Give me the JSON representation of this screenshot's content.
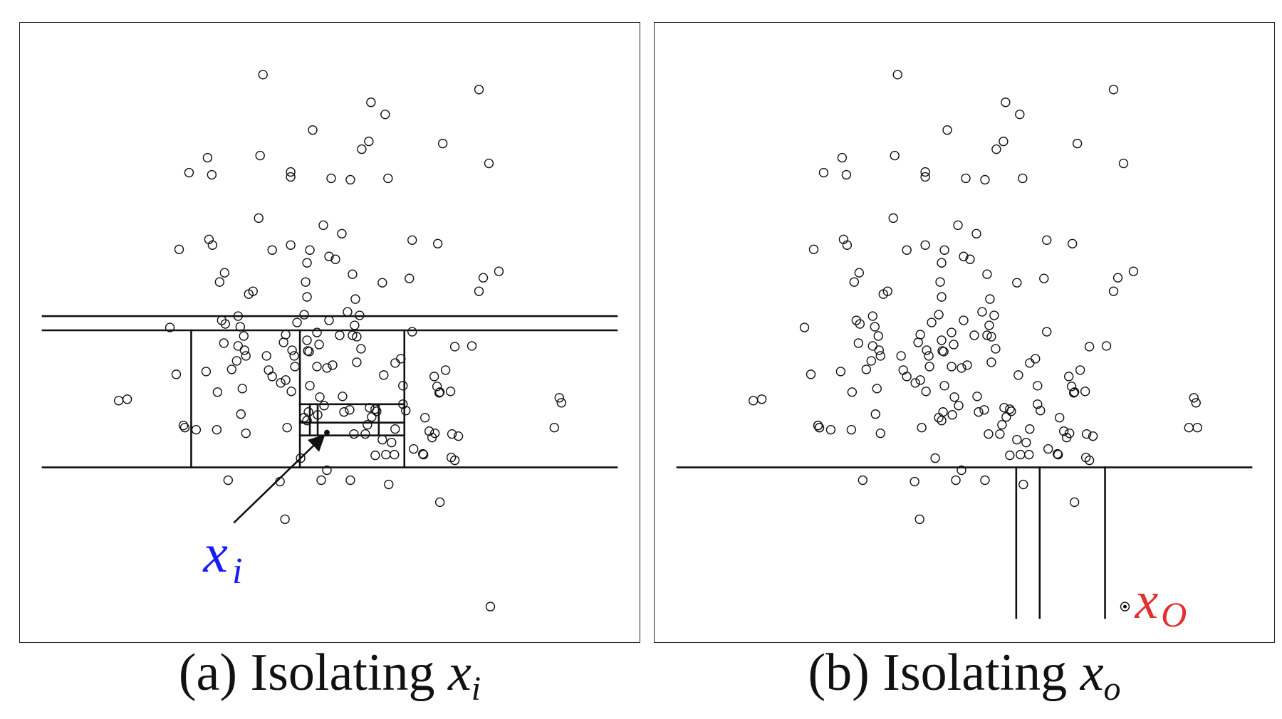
{
  "panels": [
    {
      "id": "a",
      "caption_prefix": "(a) Isolating",
      "caption_var": "x",
      "caption_sub": "i",
      "point_label": "x",
      "point_label_sub": "i",
      "label_color": "#1a1aff"
    },
    {
      "id": "b",
      "caption_prefix": "(b) Isolating",
      "caption_var": "x",
      "caption_sub": "o",
      "point_label": "x",
      "point_label_sub": "O",
      "label_color": "#e03030"
    }
  ],
  "colors": {
    "stroke": "#111111",
    "inlier_label": "#1a1aff",
    "outlier_label": "#e03030"
  }
}
